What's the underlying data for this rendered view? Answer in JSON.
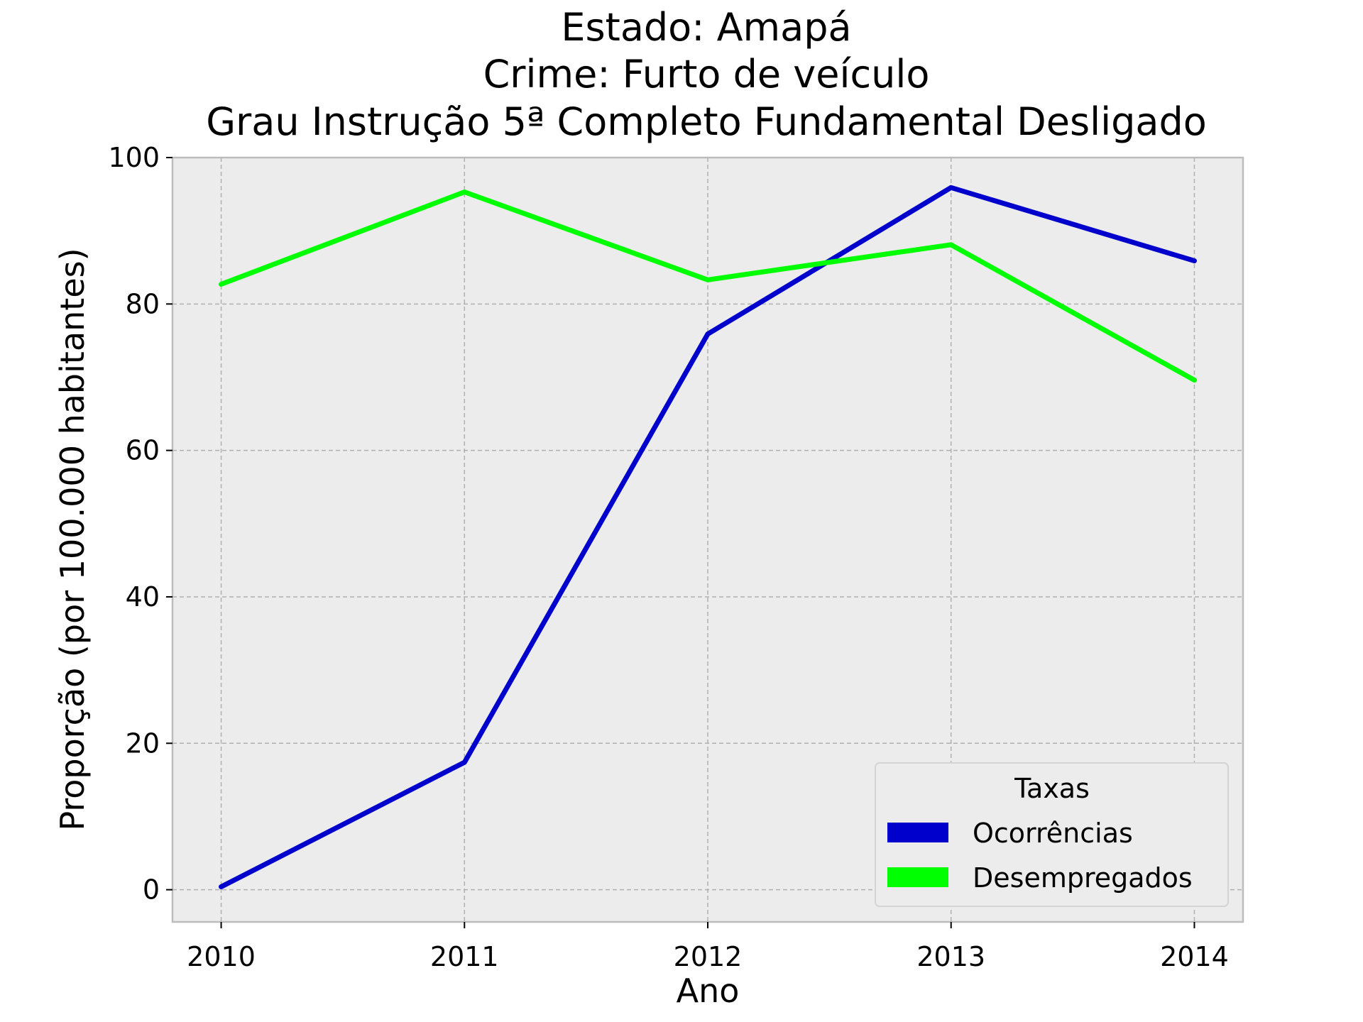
{
  "chart_data": {
    "type": "line",
    "title_lines": [
      "Estado: Amapá",
      "Crime: Furto de veículo",
      "Grau Instrução  5ª Completo Fundamental   Desligado"
    ],
    "xlabel": "Ano",
    "ylabel": "Proporção (por 100.000 habitantes)",
    "x": [
      2010,
      2011,
      2012,
      2013,
      2014
    ],
    "x_tick_labels": [
      "2010",
      "2011",
      "2012",
      "2013",
      "2014"
    ],
    "xlim": [
      2009.8,
      2014.2
    ],
    "y_ticks": [
      0,
      20,
      40,
      60,
      80,
      100
    ],
    "y_tick_labels": [
      "0",
      "20",
      "40",
      "60",
      "80",
      "100"
    ],
    "ylim": [
      -4.4,
      100.0
    ],
    "grid": true,
    "legend": {
      "title": "Taxas",
      "position": "lower-right"
    },
    "series": [
      {
        "name": "Ocorrências",
        "color": "#0000cc",
        "values": [
          0.4,
          17.4,
          75.9,
          95.9,
          85.9
        ]
      },
      {
        "name": "Desempregados",
        "color": "#00ff00",
        "values": [
          82.7,
          95.3,
          83.3,
          88.1,
          69.6
        ]
      }
    ],
    "colors": {
      "plot_background": "#ececec",
      "grid": "#b0b0b0",
      "spine": "#bcbcbc"
    }
  }
}
